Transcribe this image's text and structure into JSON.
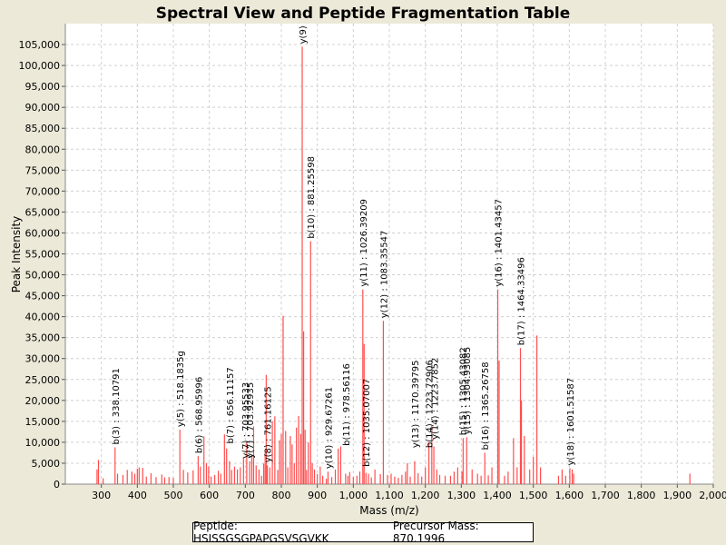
{
  "chart_data": {
    "type": "bar",
    "title": "Spectral View and Peptide Fragmentation Table",
    "xlabel": "Mass (m/z)",
    "ylabel": "Peak Intensity",
    "xlim": [
      200,
      2000
    ],
    "ylim": [
      0,
      110000
    ],
    "x_ticks": [
      300,
      400,
      500,
      600,
      700,
      800,
      900,
      1000,
      1100,
      1200,
      1300,
      1400,
      1500,
      1600,
      1700,
      1800,
      1900,
      2000
    ],
    "y_ticks": [
      0,
      5000,
      10000,
      15000,
      20000,
      25000,
      30000,
      35000,
      40000,
      45000,
      50000,
      55000,
      60000,
      65000,
      70000,
      75000,
      80000,
      85000,
      90000,
      95000,
      100000,
      105000
    ],
    "grid": true,
    "peaks": [
      [
        288,
        3500
      ],
      [
        292,
        5800
      ],
      [
        305,
        1400
      ],
      [
        338.1,
        8800
      ],
      [
        345,
        2500
      ],
      [
        360,
        2200
      ],
      [
        372,
        3400
      ],
      [
        385,
        3000
      ],
      [
        393,
        2500
      ],
      [
        400,
        3700
      ],
      [
        405,
        4000
      ],
      [
        415,
        3900
      ],
      [
        425,
        1800
      ],
      [
        438,
        2600
      ],
      [
        452,
        1700
      ],
      [
        468,
        2300
      ],
      [
        476,
        1600
      ],
      [
        488,
        1700
      ],
      [
        500,
        1500
      ],
      [
        518.2,
        13000
      ],
      [
        528,
        3400
      ],
      [
        540,
        2800
      ],
      [
        555,
        3300
      ],
      [
        569,
        6700
      ],
      [
        575,
        4200
      ],
      [
        585,
        11400
      ],
      [
        592,
        5000
      ],
      [
        598,
        4200
      ],
      [
        605,
        1800
      ],
      [
        615,
        2200
      ],
      [
        625,
        3200
      ],
      [
        632,
        2500
      ],
      [
        642,
        11900
      ],
      [
        648,
        8500
      ],
      [
        656.1,
        5500
      ],
      [
        662,
        3400
      ],
      [
        670,
        4200
      ],
      [
        678,
        3500
      ],
      [
        686,
        4000
      ],
      [
        695,
        6500
      ],
      [
        703.9,
        10000
      ],
      [
        712,
        5500
      ],
      [
        718,
        7000
      ],
      [
        723,
        13800
      ],
      [
        730,
        4500
      ],
      [
        738,
        3500
      ],
      [
        745,
        2000
      ],
      [
        751,
        4900
      ],
      [
        755,
        7500
      ],
      [
        758,
        26100
      ],
      [
        761.2,
        4500
      ],
      [
        768,
        4000
      ],
      [
        775,
        15000
      ],
      [
        782,
        16200
      ],
      [
        790,
        3400
      ],
      [
        795,
        10500
      ],
      [
        800,
        12000
      ],
      [
        805,
        40200
      ],
      [
        812,
        12700
      ],
      [
        818,
        4000
      ],
      [
        825,
        11500
      ],
      [
        830,
        9500
      ],
      [
        836,
        5000
      ],
      [
        842,
        13500
      ],
      [
        848,
        16300
      ],
      [
        854,
        12000
      ],
      [
        858,
        104500
      ],
      [
        862,
        36500
      ],
      [
        866,
        13000
      ],
      [
        870,
        3400
      ],
      [
        875,
        10000
      ],
      [
        881.3,
        58000
      ],
      [
        886,
        5000
      ],
      [
        892,
        3500
      ],
      [
        900,
        2400
      ],
      [
        908,
        4200
      ],
      [
        915,
        2000
      ],
      [
        925,
        1300
      ],
      [
        929.7,
        3000
      ],
      [
        940,
        1700
      ],
      [
        950,
        3500
      ],
      [
        958,
        8500
      ],
      [
        965,
        9000
      ],
      [
        978.6,
        2500
      ],
      [
        985,
        2000
      ],
      [
        990,
        2900
      ],
      [
        1000,
        1700
      ],
      [
        1010,
        2000
      ],
      [
        1018,
        3000
      ],
      [
        1026.4,
        46500
      ],
      [
        1030,
        33500
      ],
      [
        1035.1,
        2700
      ],
      [
        1042,
        2500
      ],
      [
        1050,
        1600
      ],
      [
        1060,
        3500
      ],
      [
        1075,
        2400
      ],
      [
        1083.4,
        39000
      ],
      [
        1095,
        2200
      ],
      [
        1105,
        2500
      ],
      [
        1115,
        1800
      ],
      [
        1125,
        1500
      ],
      [
        1135,
        2200
      ],
      [
        1145,
        3000
      ],
      [
        1150,
        5000
      ],
      [
        1158,
        1800
      ],
      [
        1170.4,
        5500
      ],
      [
        1180,
        2600
      ],
      [
        1190,
        1800
      ],
      [
        1200,
        4000
      ],
      [
        1210,
        10000
      ],
      [
        1218,
        14000
      ],
      [
        1223.7,
        9000
      ],
      [
        1232,
        3500
      ],
      [
        1240,
        2200
      ],
      [
        1255,
        2000
      ],
      [
        1270,
        2000
      ],
      [
        1280,
        3000
      ],
      [
        1290,
        4000
      ],
      [
        1302,
        3000
      ],
      [
        1305,
        11000
      ],
      [
        1315,
        11200
      ],
      [
        1330,
        3500
      ],
      [
        1345,
        2500
      ],
      [
        1355,
        2000
      ],
      [
        1365.3,
        7500
      ],
      [
        1375,
        2100
      ],
      [
        1385,
        4000
      ],
      [
        1401.4,
        46500
      ],
      [
        1405,
        29500
      ],
      [
        1420,
        2000
      ],
      [
        1430,
        3000
      ],
      [
        1445,
        11000
      ],
      [
        1455,
        4000
      ],
      [
        1464.3,
        32500
      ],
      [
        1467,
        20000
      ],
      [
        1475,
        11500
      ],
      [
        1490,
        3500
      ],
      [
        1500,
        6500
      ],
      [
        1510,
        35500
      ],
      [
        1520,
        4000
      ],
      [
        1570,
        2000
      ],
      [
        1580,
        3500
      ],
      [
        1590,
        2000
      ],
      [
        1601.5,
        3800
      ],
      [
        1608,
        3500
      ],
      [
        1612,
        2500
      ],
      [
        1935,
        2500
      ]
    ],
    "annotations": [
      {
        "x": 338.1,
        "y": 8800,
        "label": "b(3) : 338.10791"
      },
      {
        "x": 518.2,
        "y": 13000,
        "label": "y(5) : 518.1835g"
      },
      {
        "x": 569,
        "y": 6700,
        "label": "b(6) : 568.95996"
      },
      {
        "x": 656.1,
        "y": 9000,
        "label": "b(7) : 656.11157"
      },
      {
        "x": 699,
        "y": 5500,
        "label": "y(7) : 703.95533"
      },
      {
        "x": 712,
        "y": 5500,
        "label": "y(7) : 703.92935"
      },
      {
        "x": 761.2,
        "y": 4500,
        "label": "y(8) : 761.16125"
      },
      {
        "x": 858,
        "y": 104500,
        "label": "y(9)"
      },
      {
        "x": 881.3,
        "y": 58000,
        "label": "b(10) : 881.25598"
      },
      {
        "x": 929.7,
        "y": 3000,
        "label": "y(10) : 929.67261"
      },
      {
        "x": 978.6,
        "y": 8500,
        "label": "b(11) : 978.56116"
      },
      {
        "x": 1026.4,
        "y": 46500,
        "label": "y(11) : 1026.39209"
      },
      {
        "x": 1035.1,
        "y": 3500,
        "label": "b(12) : 1035.07007"
      },
      {
        "x": 1083.4,
        "y": 39000,
        "label": "y(12) : 1083.35547"
      },
      {
        "x": 1170.4,
        "y": 8000,
        "label": "y(13) : 1170.39795"
      },
      {
        "x": 1210,
        "y": 8000,
        "label": "b(14) : 1223.72906"
      },
      {
        "x": 1225,
        "y": 10000,
        "label": "y(14) : 1223.7852"
      },
      {
        "x": 1303,
        "y": 11000,
        "label": "b(15) : 1305.43082"
      },
      {
        "x": 1314,
        "y": 11200,
        "label": "y(15) : 1304.93085"
      },
      {
        "x": 1365.3,
        "y": 7500,
        "label": "b(16) : 1365.26758"
      },
      {
        "x": 1401.4,
        "y": 46500,
        "label": "y(16) : 1401.43457"
      },
      {
        "x": 1464.3,
        "y": 32500,
        "label": "b(17) : 1464.33496"
      },
      {
        "x": 1601.5,
        "y": 3800,
        "label": "y(18) : 1601.51587"
      }
    ],
    "colors": {
      "peak": "#ff4d4d",
      "grid": "#d0d0d0",
      "background": "#ece9d8",
      "plot": "#ffffff"
    }
  },
  "legend": {
    "peptide": "Peptide: HSISSGSGPAPGSVSGVKK",
    "precursor": "Precursor Mass: 870.1996"
  }
}
